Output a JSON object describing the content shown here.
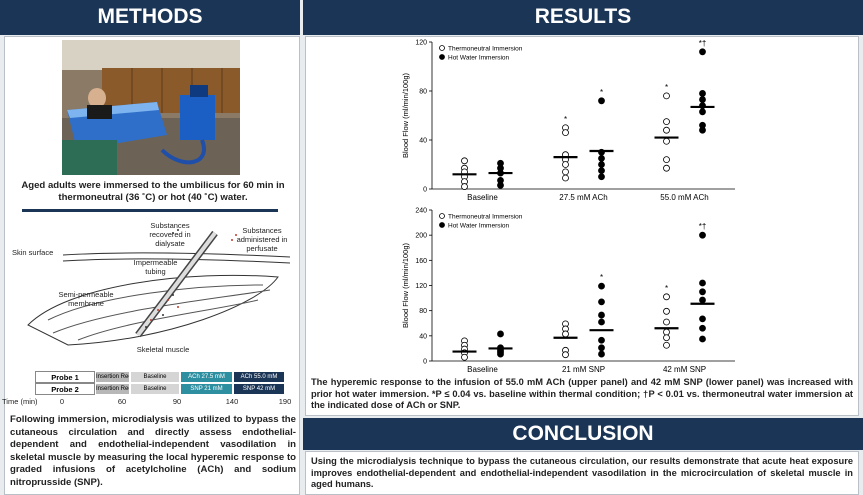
{
  "methods": {
    "header": "METHODS",
    "photo_caption": "Aged adults were immersed to the umbilicus for 60 min in thermoneutral (36 ˚C) or hot (40 ˚C) water.",
    "diagram": {
      "recovered": "Substances recovered in dialysate",
      "administered": "Substances administered in perfusate",
      "skin": "Skin surface",
      "tubing": "Impermeable tubing",
      "membrane": "Semi-permeable membrane",
      "muscle": "Skeletal muscle"
    },
    "timeline": {
      "rows": [
        {
          "probe": "Probe 1",
          "segments": [
            "Insertion Recovery",
            "Baseline",
            "ACh 27.5 mM",
            "ACh 55.0 mM"
          ]
        },
        {
          "probe": "Probe 2",
          "segments": [
            "Insertion Recovery",
            "Baseline",
            "SNP 21 mM",
            "SNP 42 mM"
          ]
        }
      ],
      "axis_label": "Time (min)",
      "ticks": [
        0,
        60,
        90,
        140,
        190
      ]
    },
    "summary": "Following immersion, microdialysis was utilized to bypass the cutaneous circulation and directly assess endothelial-dependent and endothelial-independent vasodilation in skeletal muscle by measuring the local hyperemic response to graded infusions of acetylcholine (ACh) and sodium nitroprusside (SNP)."
  },
  "results": {
    "header": "RESULTS",
    "caption": "The hyperemic response to the infusion of 55.0 mM ACh (upper panel) and 42 mM SNP (lower panel) was increased with prior hot water immersion. *P ≤ 0.04 vs. baseline within thermal condition; †P < 0.01 vs. thermoneutral water immersion at the indicated dose of ACh or SNP."
  },
  "chart_data": [
    {
      "type": "dot",
      "ylabel": "Blood Flow (ml/min/100g)",
      "categories": [
        "Baseline",
        "27.5 mM ACh",
        "55.0 mM ACh"
      ],
      "ylim": [
        0,
        120
      ],
      "yticks": [
        0,
        40,
        80,
        120
      ],
      "legend": "upper left",
      "series": [
        {
          "name": "Thermoneutral Immersion",
          "marker": "open",
          "color": "#000000",
          "values": [
            [
              23,
              17,
              14,
              10,
              6,
              2
            ],
            [
              50,
              46,
              28,
              24,
              20,
              14,
              9
            ],
            [
              76,
              55,
              48,
              39,
              24,
              17
            ]
          ],
          "means": [
            12,
            26,
            42
          ],
          "annotations": [
            null,
            "*",
            "*"
          ]
        },
        {
          "name": "Hot Water Immersion",
          "marker": "filled",
          "color": "#000000",
          "values": [
            [
              21,
              17,
              13,
              7,
              3
            ],
            [
              72,
              30,
              25,
              20,
              15,
              10
            ],
            [
              112,
              78,
              73,
              68,
              63,
              52,
              48
            ]
          ],
          "means": [
            13,
            31,
            67
          ],
          "annotations": [
            null,
            "*",
            "*†"
          ]
        }
      ]
    },
    {
      "type": "dot",
      "ylabel": "Blood Flow (ml/min/100g)",
      "categories": [
        "Baseline",
        "21 mM SNP",
        "42 mM SNP"
      ],
      "ylim": [
        0,
        240
      ],
      "yticks": [
        0,
        40,
        80,
        120,
        160,
        200,
        240
      ],
      "legend": "upper left",
      "series": [
        {
          "name": "Thermoneutral Immersion",
          "marker": "open",
          "color": "#000000",
          "values": [
            [
              32,
              25,
              19,
              13,
              6
            ],
            [
              59,
              51,
              43,
              17,
              10
            ],
            [
              102,
              79,
              62,
              46,
              37,
              25
            ]
          ],
          "means": [
            15,
            37,
            52
          ],
          "annotations": [
            null,
            null,
            "*"
          ]
        },
        {
          "name": "Hot Water Immersion",
          "marker": "filled",
          "color": "#000000",
          "values": [
            [
              43,
              21,
              17,
              14,
              11
            ],
            [
              119,
              94,
              73,
              62,
              33,
              21,
              11
            ],
            [
              200,
              124,
              110,
              97,
              67,
              52,
              35
            ]
          ],
          "means": [
            20,
            49,
            91
          ],
          "annotations": [
            null,
            "*",
            "*†"
          ]
        }
      ]
    }
  ],
  "conclusion": {
    "header": "CONCLUSION",
    "text": "Using the microdialysis technique to bypass the cutaneous circulation, our results demonstrate that acute heat exposure improves endothelial-dependent and endothelial-independent vasodilation in the microcirculation of skeletal muscle in aged humans."
  }
}
